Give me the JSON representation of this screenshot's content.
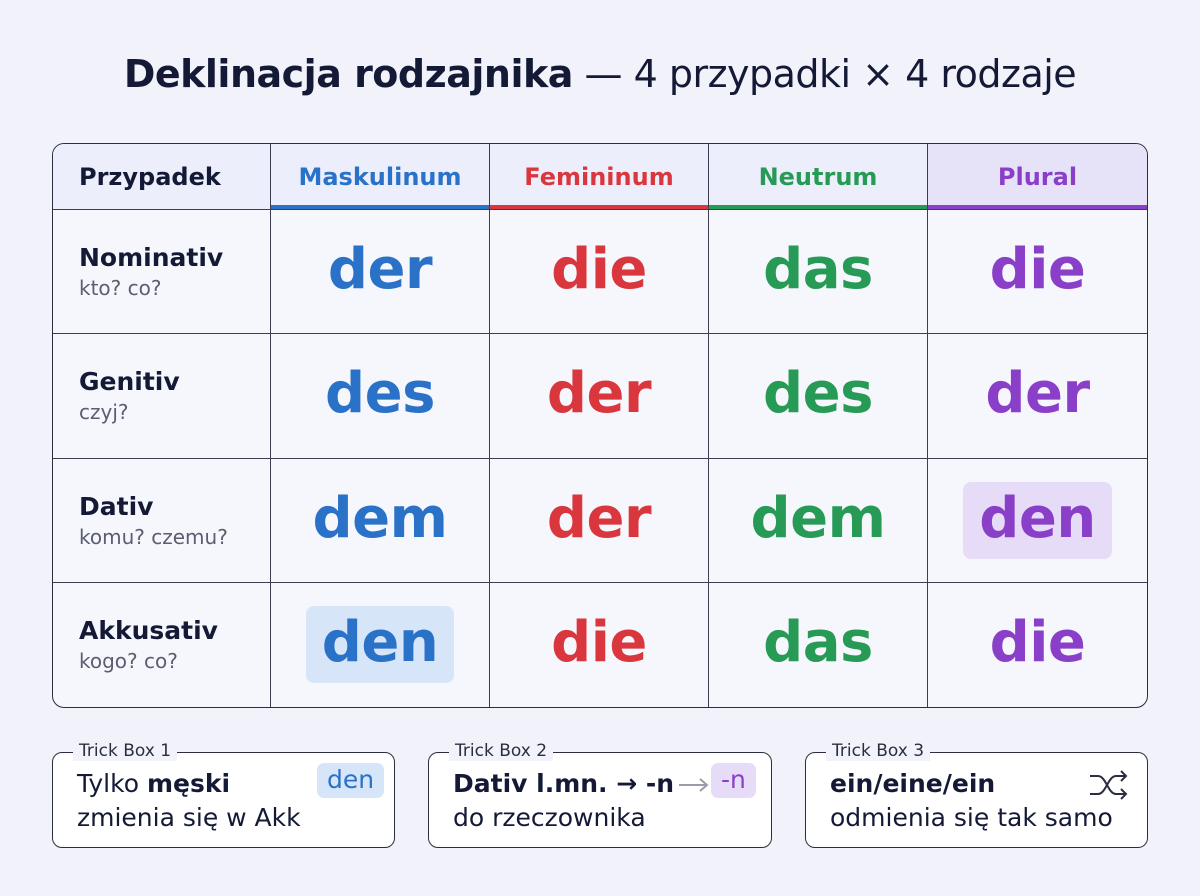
{
  "title": {
    "main": "Deklinacja rodzajnika",
    "rest": "— 4 przypadki × 4 rodzaje"
  },
  "table": {
    "header": [
      "Przypadek",
      "Maskulinum",
      "Femininum",
      "Neutrum",
      "Plural"
    ],
    "rows": [
      {
        "case": "Nominativ",
        "question": "kto? co?",
        "forms": [
          "der",
          "die",
          "das",
          "die"
        ]
      },
      {
        "case": "Genitiv",
        "question": "czyj?",
        "forms": [
          "des",
          "der",
          "des",
          "der"
        ]
      },
      {
        "case": "Dativ",
        "question": "komu? czemu?",
        "forms": [
          "dem",
          "der",
          "dem",
          "den"
        ]
      },
      {
        "case": "Akkusativ",
        "question": "kogo? co?",
        "forms": [
          "den",
          "die",
          "das",
          "die"
        ]
      }
    ]
  },
  "trick_boxes": [
    {
      "label": "Trick Box 1",
      "plain": "Tylko",
      "bold": "męski",
      "line2": "zmienia się w Akk",
      "badge": "den"
    },
    {
      "label": "Trick Box 2",
      "bold": "Dativ l.mn. → -n",
      "line2": "do rzeczownika",
      "badge": "-n"
    },
    {
      "label": "Trick Box 3",
      "bold": "ein/eine/ein",
      "line2": "odmienia się tak samo"
    }
  ]
}
